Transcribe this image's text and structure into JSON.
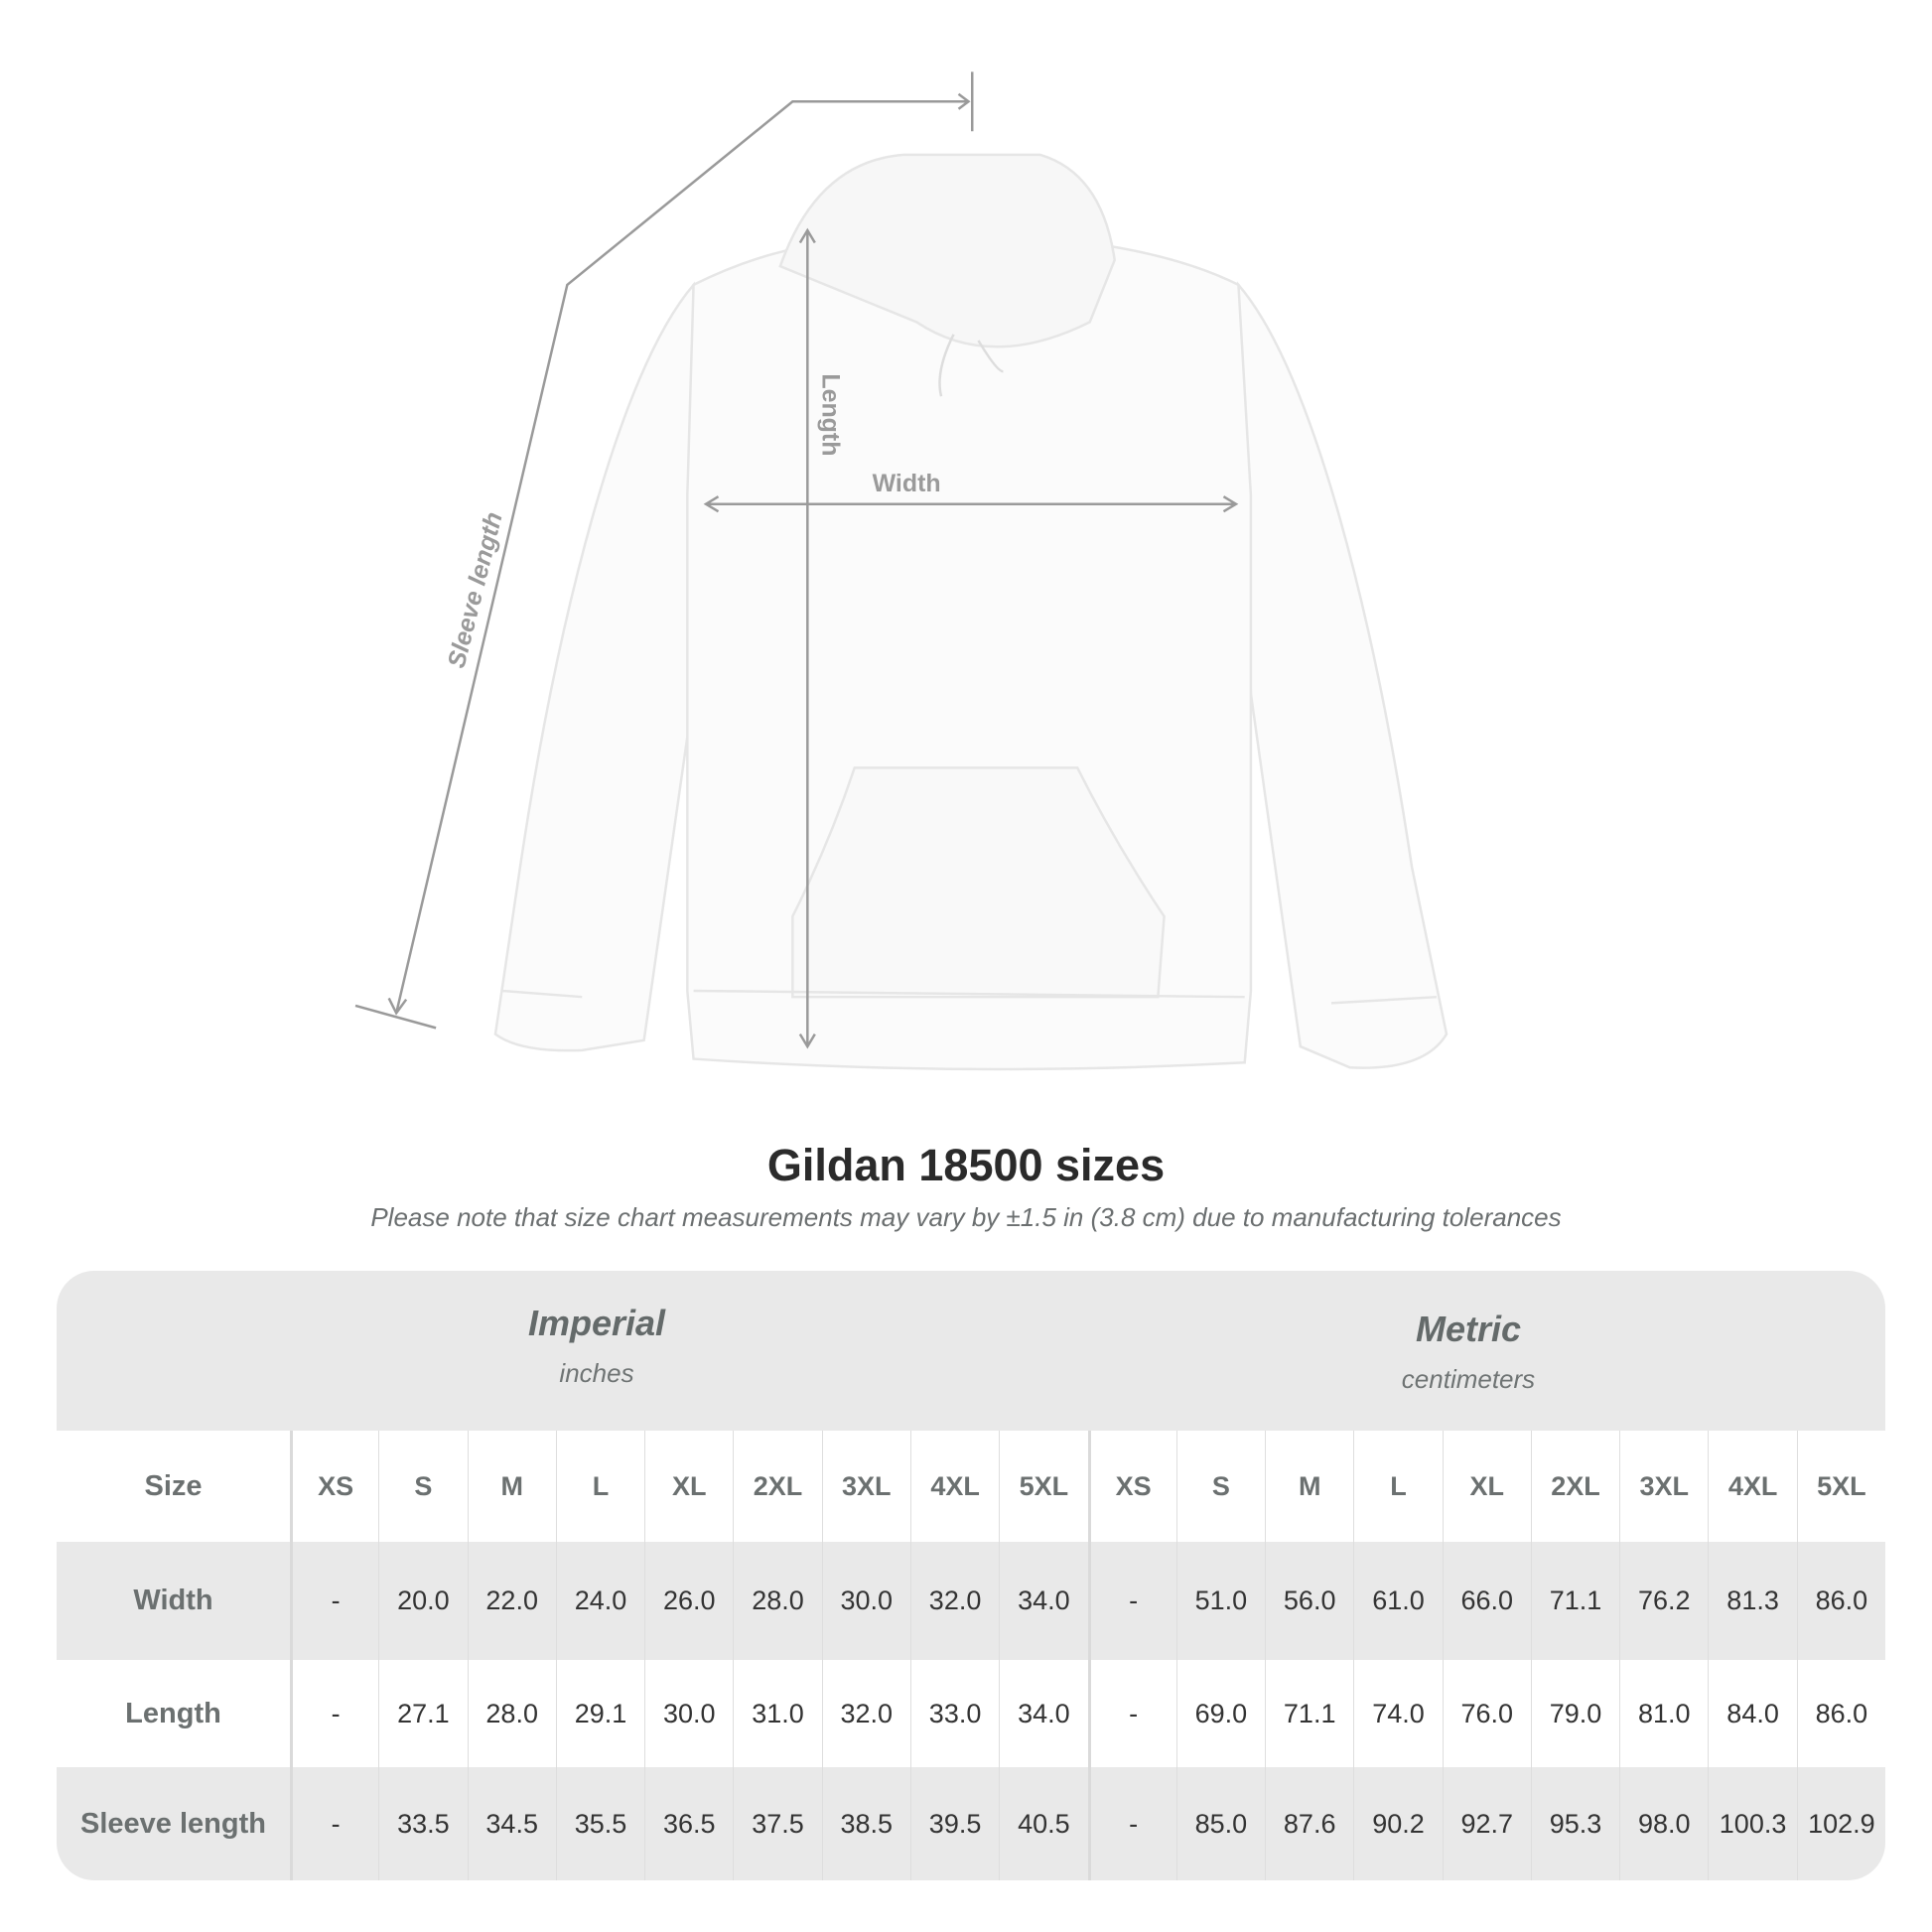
{
  "diagram": {
    "labels": {
      "sleeve": "Sleeve length",
      "length": "Length",
      "width": "Width"
    },
    "line_color": "#9a9a9a"
  },
  "title": "Gildan 18500 sizes",
  "subtitle": "Please note that size chart measurements may vary by ±1.5 in (3.8 cm) due to manufacturing tolerances",
  "table": {
    "imperial": {
      "name": "Imperial",
      "unit": "inches"
    },
    "metric": {
      "name": "Metric",
      "unit": "centimeters"
    },
    "header": {
      "label": "Size",
      "sizes": [
        "XS",
        "S",
        "M",
        "L",
        "XL",
        "2XL",
        "3XL",
        "4XL",
        "5XL",
        "XS",
        "S",
        "M",
        "L",
        "XL",
        "2XL",
        "3XL",
        "4XL",
        "5XL"
      ]
    },
    "rows": [
      {
        "label": "Width",
        "values": [
          "-",
          "20.0",
          "22.0",
          "24.0",
          "26.0",
          "28.0",
          "30.0",
          "32.0",
          "34.0",
          "-",
          "51.0",
          "56.0",
          "61.0",
          "66.0",
          "71.1",
          "76.2",
          "81.3",
          "86.0"
        ]
      },
      {
        "label": "Length",
        "values": [
          "-",
          "27.1",
          "28.0",
          "29.1",
          "30.0",
          "31.0",
          "32.0",
          "33.0",
          "34.0",
          "-",
          "69.0",
          "71.1",
          "74.0",
          "76.0",
          "79.0",
          "81.0",
          "84.0",
          "86.0"
        ]
      },
      {
        "label": "Sleeve length",
        "values": [
          "-",
          "33.5",
          "34.5",
          "35.5",
          "36.5",
          "37.5",
          "38.5",
          "39.5",
          "40.5",
          "-",
          "85.0",
          "87.6",
          "90.2",
          "92.7",
          "95.3",
          "98.0",
          "100.3",
          "102.9"
        ]
      }
    ]
  }
}
